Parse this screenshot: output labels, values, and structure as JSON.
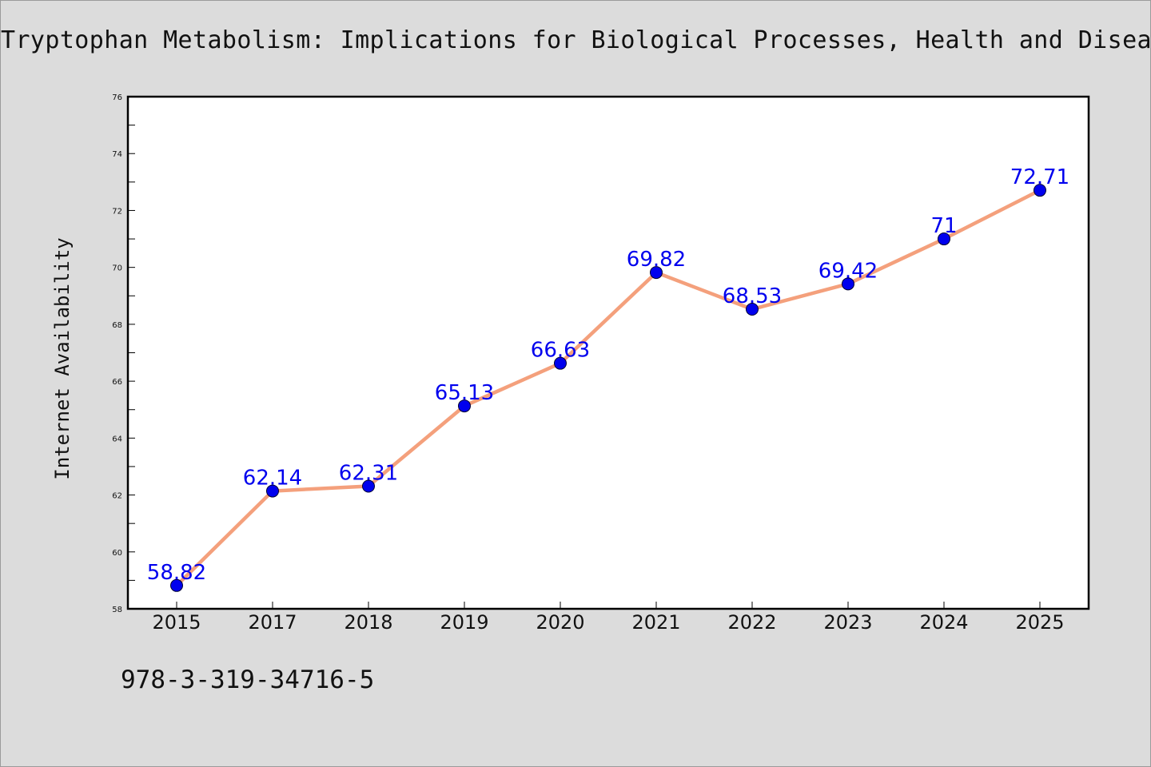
{
  "page": {
    "title": "Tryptophan Metabolism: Implications for Biological Processes, Health and Disease",
    "isbn": "978-3-319-34716-5"
  },
  "chart_data": {
    "type": "line",
    "title": "Tryptophan Metabolism: Implications for Biological Processes, Health and Disease",
    "xlabel": "",
    "ylabel": "Internet Availability",
    "categories": [
      "2015",
      "2017",
      "2018",
      "2019",
      "2020",
      "2021",
      "2022",
      "2023",
      "2024",
      "2025"
    ],
    "series": [
      {
        "values": [
          58.82,
          62.14,
          62.31,
          65.13,
          66.63,
          69.82,
          68.53,
          69.42,
          71,
          72.71
        ],
        "labels": [
          "58.82",
          "62.14",
          "62.31",
          "65.13",
          "66.63",
          "69.82",
          "68.53",
          "69.42",
          "71",
          "72.71"
        ]
      }
    ],
    "ylim": [
      58,
      76
    ],
    "yticks": [
      "58",
      "60",
      "62",
      "64",
      "66",
      "68",
      "70",
      "72",
      "74",
      "76"
    ],
    "grid": false,
    "legend": "none",
    "colors": {
      "line": "#f4a07c",
      "marker": "#0000ee",
      "label": "#0000ee",
      "plot_background": "#ffffff",
      "page_background": "#dcdcdc"
    }
  }
}
